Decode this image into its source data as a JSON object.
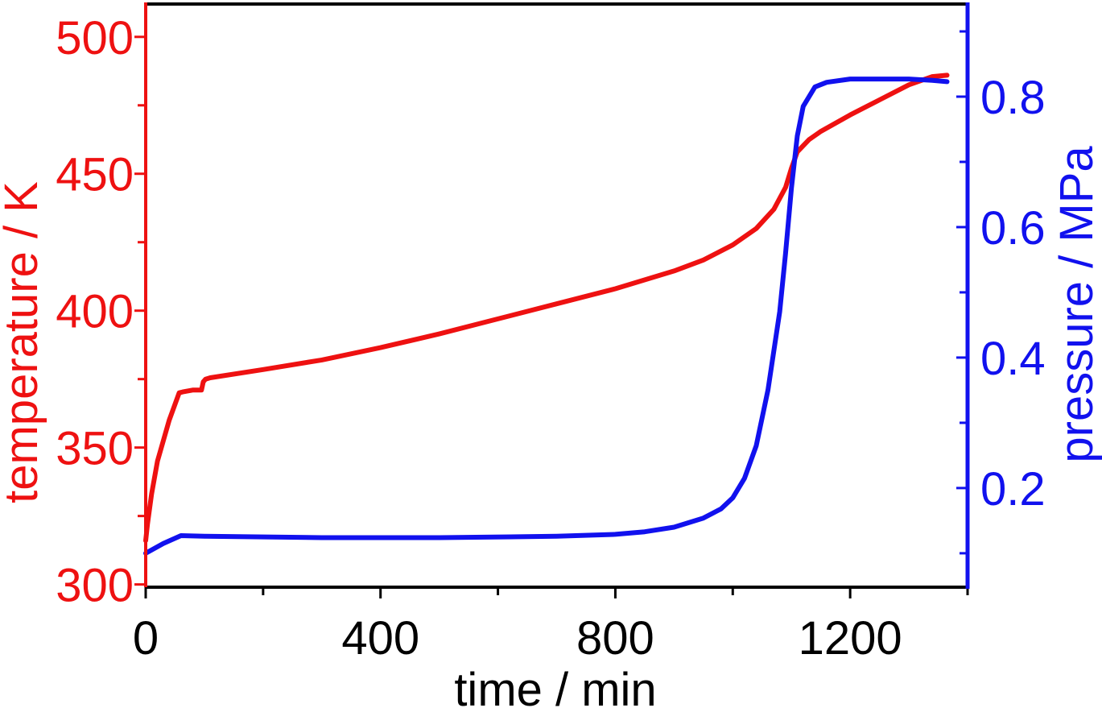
{
  "chart_data": {
    "type": "line",
    "title": "",
    "xlabel": "time / min",
    "ylabel_left": "temperature / K",
    "ylabel_right": "pressure / MPa",
    "xlim": [
      0,
      1400
    ],
    "ylim_left": [
      299,
      512
    ],
    "ylim_right": [
      0.048,
      0.942
    ],
    "x_ticks": [
      0,
      400,
      800,
      1200
    ],
    "x_minor_ticks": [
      200,
      600,
      1000,
      1400
    ],
    "y_left_ticks": [
      300,
      350,
      400,
      450,
      500
    ],
    "y_left_minor_ticks": [
      325,
      375,
      425,
      475
    ],
    "y_right_ticks": [
      0.2,
      0.4,
      0.6,
      0.8
    ],
    "y_right_minor_ticks": [
      0.1,
      0.3,
      0.5,
      0.7,
      0.9
    ],
    "grid": false,
    "colors": {
      "temperature": "#ee1111",
      "pressure": "#1111ee",
      "axis": "#000000"
    },
    "series": [
      {
        "axis": "left",
        "color": "#ee1111",
        "x": [
          0,
          3,
          10,
          20,
          40,
          57,
          63,
          80,
          95,
          98,
          102,
          110,
          200,
          300,
          400,
          500,
          600,
          700,
          800,
          900,
          950,
          1000,
          1040,
          1070,
          1090,
          1100,
          1110,
          1130,
          1150,
          1200,
          1250,
          1300,
          1340,
          1365
        ],
        "y": [
          316,
          322,
          333,
          345,
          360,
          370,
          370.3,
          371,
          371,
          374,
          375,
          375.5,
          378.5,
          382,
          386.5,
          391.5,
          397,
          402.5,
          408,
          414.5,
          418.5,
          424,
          430,
          437,
          445,
          452,
          458,
          462.5,
          465.5,
          471.5,
          477,
          482.5,
          485.5,
          486
        ]
      },
      {
        "axis": "right",
        "color": "#1111ee",
        "x": [
          0,
          30,
          60,
          100,
          300,
          500,
          700,
          800,
          850,
          900,
          950,
          980,
          1000,
          1020,
          1040,
          1060,
          1080,
          1090,
          1100,
          1110,
          1120,
          1140,
          1160,
          1200,
          1250,
          1300,
          1340,
          1365
        ],
        "y": [
          0.1,
          0.115,
          0.127,
          0.126,
          0.124,
          0.124,
          0.126,
          0.129,
          0.133,
          0.14,
          0.154,
          0.168,
          0.185,
          0.215,
          0.265,
          0.35,
          0.47,
          0.56,
          0.66,
          0.74,
          0.785,
          0.815,
          0.822,
          0.827,
          0.827,
          0.827,
          0.825,
          0.823
        ]
      }
    ]
  }
}
